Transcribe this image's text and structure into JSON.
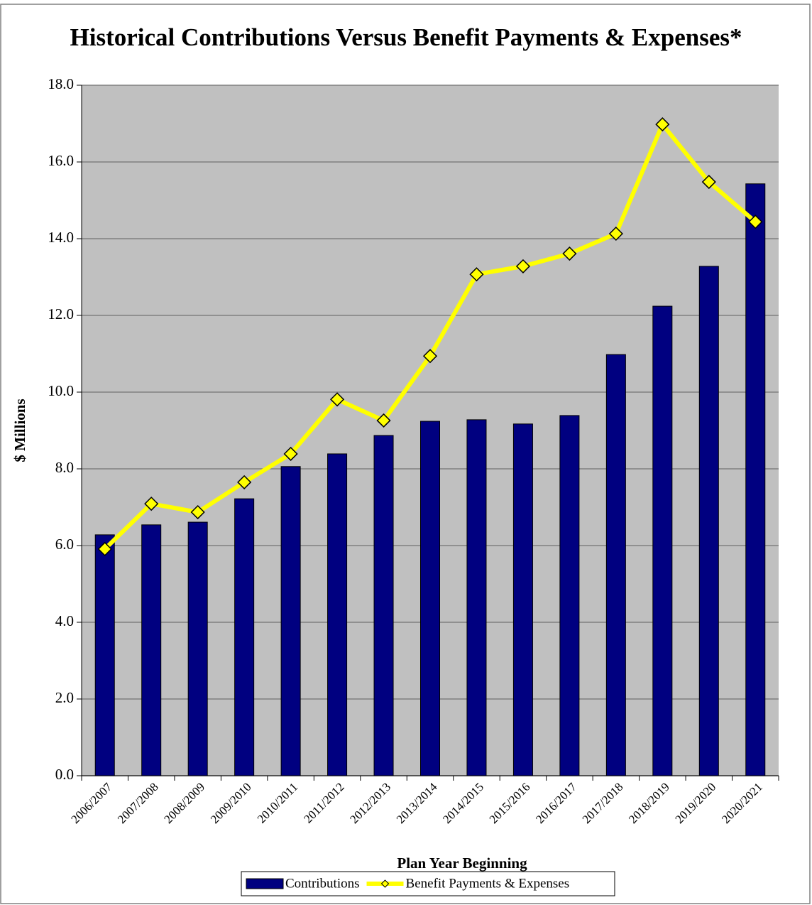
{
  "chart_data": {
    "type": "bar-line",
    "title": "Historical Contributions Versus Benefit Payments & Expenses*",
    "x_label": "Plan Year Beginning",
    "y_label": "$ Millions",
    "categories": [
      "2006/2007",
      "2007/2008",
      "2008/2009",
      "2009/2010",
      "2010/2011",
      "2011/2012",
      "2012/2013",
      "2013/2014",
      "2014/2015",
      "2015/2016",
      "2016/2017",
      "2017/2018",
      "2018/2019",
      "2019/2020",
      "2020/2021"
    ],
    "series": [
      {
        "name": "Contributions",
        "type": "bar",
        "color": "#000080",
        "values": [
          6.28,
          6.54,
          6.61,
          7.22,
          8.06,
          8.39,
          8.87,
          9.24,
          9.28,
          9.17,
          9.39,
          10.98,
          12.24,
          13.28,
          15.43
        ]
      },
      {
        "name": "Benefit Payments & Expenses",
        "type": "line",
        "color": "#ffff00",
        "values": [
          5.91,
          7.09,
          6.87,
          7.65,
          8.39,
          9.81,
          9.26,
          10.94,
          13.07,
          13.28,
          13.61,
          14.13,
          16.98,
          15.48,
          14.44
        ]
      }
    ],
    "ylim": [
      0,
      18
    ],
    "yticks": [
      {
        "value": 0,
        "label": "0.0"
      },
      {
        "value": 2,
        "label": "2.0"
      },
      {
        "value": 4,
        "label": "4.0"
      },
      {
        "value": 6,
        "label": "6.0"
      },
      {
        "value": 8,
        "label": "8.0"
      },
      {
        "value": 10,
        "label": "10.0"
      },
      {
        "value": 12,
        "label": "12.0"
      },
      {
        "value": 14,
        "label": "14.0"
      },
      {
        "value": 16,
        "label": "16.0"
      },
      {
        "value": 18,
        "label": "18.0"
      }
    ],
    "grid": true,
    "legend": "bottom"
  }
}
